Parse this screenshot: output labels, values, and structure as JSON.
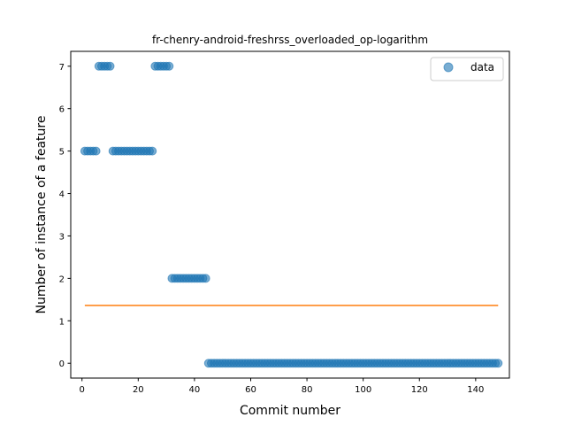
{
  "chart_data": {
    "type": "scatter",
    "title": "fr-chenry-android-freshrss_overloaded_op-logarithm",
    "xlabel": "Commit number",
    "ylabel": "Number of instance of a feature",
    "xlim": [
      -4,
      152
    ],
    "ylim": [
      -0.35,
      7.35
    ],
    "xticks": [
      0,
      20,
      40,
      60,
      80,
      100,
      120,
      140
    ],
    "yticks": [
      0,
      1,
      2,
      3,
      4,
      5,
      6,
      7
    ],
    "grid": false,
    "legend": {
      "position": "top-right",
      "entries": [
        "data"
      ]
    },
    "colors": {
      "points": "#1f77b4",
      "fit_line": "#ff7f0e"
    },
    "series": [
      {
        "name": "data",
        "kind": "scatter",
        "segments": [
          {
            "x_start": 1,
            "x_end": 5,
            "y": 5
          },
          {
            "x_start": 6,
            "x_end": 10,
            "y": 7
          },
          {
            "x_start": 11,
            "x_end": 25,
            "y": 5
          },
          {
            "x_start": 26,
            "x_end": 31,
            "y": 7
          },
          {
            "x_start": 32,
            "x_end": 44,
            "y": 2
          },
          {
            "x_start": 45,
            "x_end": 148,
            "y": 0
          }
        ]
      },
      {
        "kind": "line",
        "x": [
          1,
          148
        ],
        "y": [
          1.36,
          1.36
        ]
      }
    ]
  }
}
